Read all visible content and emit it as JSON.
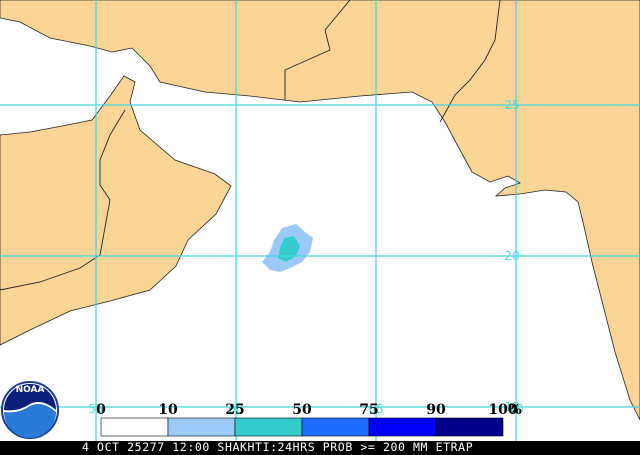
{
  "map": {
    "lat_labels": [
      "25",
      "20",
      "15"
    ],
    "lon_labels": [
      "55",
      "60",
      "65",
      "70"
    ],
    "legend": {
      "labels": [
        "0",
        "10",
        "25",
        "50",
        "75",
        "90",
        "100"
      ],
      "unit": "%",
      "colors": [
        "#ffffff",
        "#9ccaf8",
        "#33cccc",
        "#1e6cff",
        "#0000ff",
        "#00008c"
      ]
    },
    "caption": "4 OCT 25277 12:00 SHAKHTI:24HRS PROB >= 200 MM ETRAP",
    "logo": "NOAA"
  }
}
